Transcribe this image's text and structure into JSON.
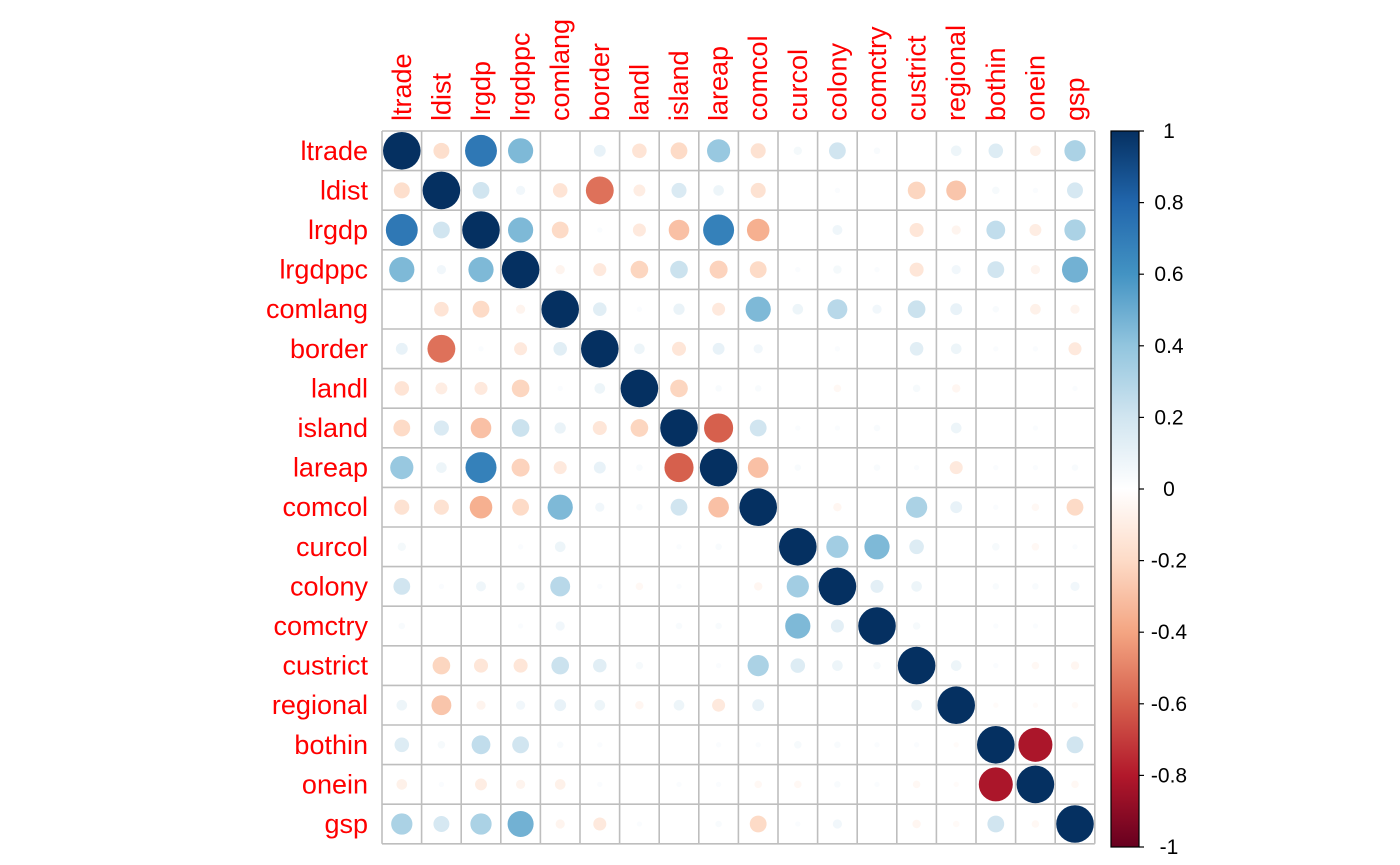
{
  "chart_data": {
    "type": "heatmap",
    "style": "circle",
    "variables": [
      "ltrade",
      "ldist",
      "lrgdp",
      "lrgdppc",
      "comlang",
      "border",
      "landl",
      "island",
      "lareap",
      "comcol",
      "curcol",
      "colony",
      "comctry",
      "custrict",
      "regional",
      "bothin",
      "onein",
      "gsp"
    ],
    "matrix": [
      [
        1,
        -0.18,
        0.72,
        0.45,
        0,
        0.1,
        -0.15,
        -0.2,
        0.38,
        -0.16,
        0.05,
        0.2,
        0.03,
        0,
        0.08,
        0.15,
        -0.08,
        0.32
      ],
      [
        -0.18,
        1,
        0.2,
        0.06,
        -0.15,
        -0.55,
        -0.1,
        0.16,
        0.08,
        -0.16,
        0,
        0.02,
        0,
        -0.22,
        -0.28,
        0.04,
        0.02,
        0.18
      ],
      [
        0.72,
        0.2,
        1,
        0.45,
        -0.2,
        0.02,
        -0.12,
        -0.3,
        0.68,
        -0.36,
        0,
        0.07,
        0,
        -0.14,
        -0.06,
        0.25,
        -0.1,
        0.32
      ],
      [
        0.45,
        0.06,
        0.45,
        1,
        -0.06,
        -0.12,
        -0.22,
        0.22,
        -0.23,
        -0.2,
        0.02,
        0.05,
        0.02,
        -0.14,
        0.06,
        0.2,
        -0.06,
        0.48
      ],
      [
        0,
        -0.15,
        -0.2,
        -0.06,
        1,
        0.13,
        0.02,
        0.09,
        -0.12,
        0.45,
        0.08,
        0.28,
        0.06,
        0.22,
        0.1,
        0.03,
        -0.08,
        -0.06
      ],
      [
        0.1,
        -0.55,
        0.02,
        -0.12,
        0.13,
        1,
        0.08,
        -0.14,
        0.1,
        0.06,
        0,
        0.02,
        0,
        0.13,
        0.08,
        0.02,
        0.02,
        -0.12
      ],
      [
        -0.15,
        -0.1,
        -0.12,
        -0.22,
        0.02,
        0.08,
        1,
        -0.22,
        0.03,
        0.03,
        0,
        -0.04,
        0,
        0.04,
        -0.05,
        0,
        0,
        0.02
      ],
      [
        -0.2,
        0.16,
        -0.3,
        0.22,
        0.09,
        -0.14,
        -0.22,
        1,
        -0.6,
        0.2,
        0.02,
        0.02,
        0.03,
        0,
        0.08,
        0,
        0.02,
        0
      ],
      [
        0.38,
        0.08,
        0.68,
        -0.23,
        -0.12,
        0.1,
        0.03,
        -0.6,
        1,
        -0.3,
        0.03,
        0,
        0.03,
        0.02,
        -0.12,
        0.02,
        0.02,
        0.03
      ],
      [
        -0.16,
        -0.16,
        -0.36,
        -0.2,
        0.45,
        0.06,
        0.03,
        0.2,
        -0.3,
        1,
        0,
        -0.05,
        0,
        0.32,
        0.1,
        0.02,
        -0.04,
        -0.2
      ],
      [
        0.05,
        0,
        0,
        0.02,
        0.08,
        0,
        0,
        0.02,
        0.03,
        0,
        1,
        0.35,
        0.45,
        0.15,
        0,
        0.04,
        -0.04,
        0.02
      ],
      [
        0.2,
        0.02,
        0.07,
        0.05,
        0.28,
        0.02,
        -0.04,
        0.02,
        0,
        -0.05,
        0.35,
        1,
        0.12,
        0.08,
        0,
        0.03,
        0.03,
        0.06
      ],
      [
        0.03,
        0,
        0,
        0.02,
        0.06,
        0,
        0,
        0.03,
        0.03,
        0,
        0.45,
        0.12,
        1,
        0.04,
        0,
        0.02,
        0.02,
        0
      ],
      [
        0,
        -0.22,
        -0.14,
        -0.14,
        0.22,
        0.13,
        0.04,
        0,
        0.02,
        0.32,
        0.15,
        0.08,
        0.04,
        1,
        0.08,
        0.02,
        -0.04,
        -0.05
      ],
      [
        0.08,
        -0.28,
        -0.06,
        0.06,
        0.1,
        0.08,
        -0.05,
        0.08,
        -0.12,
        0.1,
        0,
        0,
        0,
        0.08,
        1,
        -0.02,
        -0.02,
        -0.03
      ],
      [
        0.15,
        0.04,
        0.25,
        0.2,
        0.03,
        0.02,
        0,
        0,
        0.02,
        0.02,
        0.04,
        0.03,
        0.02,
        0.02,
        -0.02,
        1,
        -0.82,
        0.2
      ],
      [
        -0.08,
        0.02,
        -0.1,
        -0.06,
        -0.08,
        0.02,
        0,
        0.02,
        0.02,
        -0.04,
        -0.04,
        0.03,
        0.02,
        -0.04,
        -0.02,
        -0.82,
        1,
        -0.04
      ],
      [
        0.32,
        0.18,
        0.32,
        0.48,
        -0.06,
        -0.12,
        0.02,
        0,
        0.03,
        -0.2,
        0.02,
        0.06,
        0,
        -0.05,
        -0.03,
        0.2,
        -0.04,
        1
      ]
    ],
    "colorbar": {
      "range": [
        -1,
        1
      ],
      "ticks": [
        "1",
        "0.8",
        "0.6",
        "0.4",
        "0.2",
        "0",
        "-0.2",
        "-0.4",
        "-0.6",
        "-0.8",
        "-1"
      ],
      "colors": [
        "#67001F",
        "#B2182B",
        "#D6604D",
        "#F4A582",
        "#FDDBC7",
        "#FFFFFF",
        "#D1E5F0",
        "#92C5DE",
        "#4393C3",
        "#2166AC",
        "#053061"
      ]
    },
    "label_color": "#FF0000",
    "grid": true,
    "grid_color": "#BEBEBE",
    "legend": "right"
  }
}
